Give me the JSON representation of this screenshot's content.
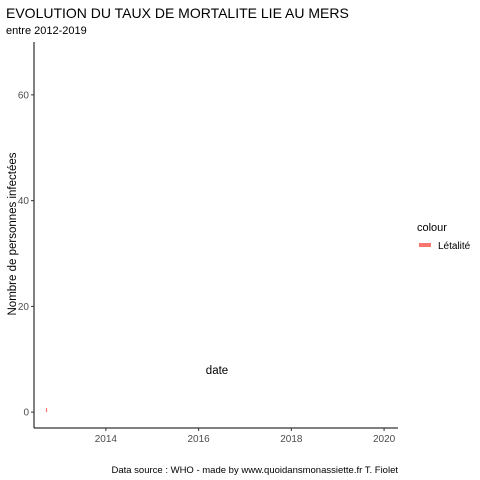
{
  "chart_data": {
    "type": "line",
    "title": "EVOLUTION DU TAUX DE MORTALITE LIE AU MERS",
    "subtitle": "entre 2012-2019",
    "xlabel": "date",
    "ylabel": "Nombre de personnes infectées",
    "caption": "Data source : WHO - made by www.quoidansmonassiette.fr T. Fiolet",
    "xlim": [
      2012.45,
      2020.3
    ],
    "ylim": [
      -3,
      70
    ],
    "x_ticks": [
      2014,
      2016,
      2018,
      2020
    ],
    "y_ticks": [
      0,
      20,
      40,
      60
    ],
    "grid": false,
    "legend": {
      "title": "colour",
      "position": "right"
    },
    "series": [
      {
        "name": "Létalité",
        "color": "#F8766D",
        "points": [
          {
            "x": 2012.72,
            "y": 0
          },
          {
            "x": 2012.72,
            "y": 0.4
          }
        ]
      }
    ]
  }
}
